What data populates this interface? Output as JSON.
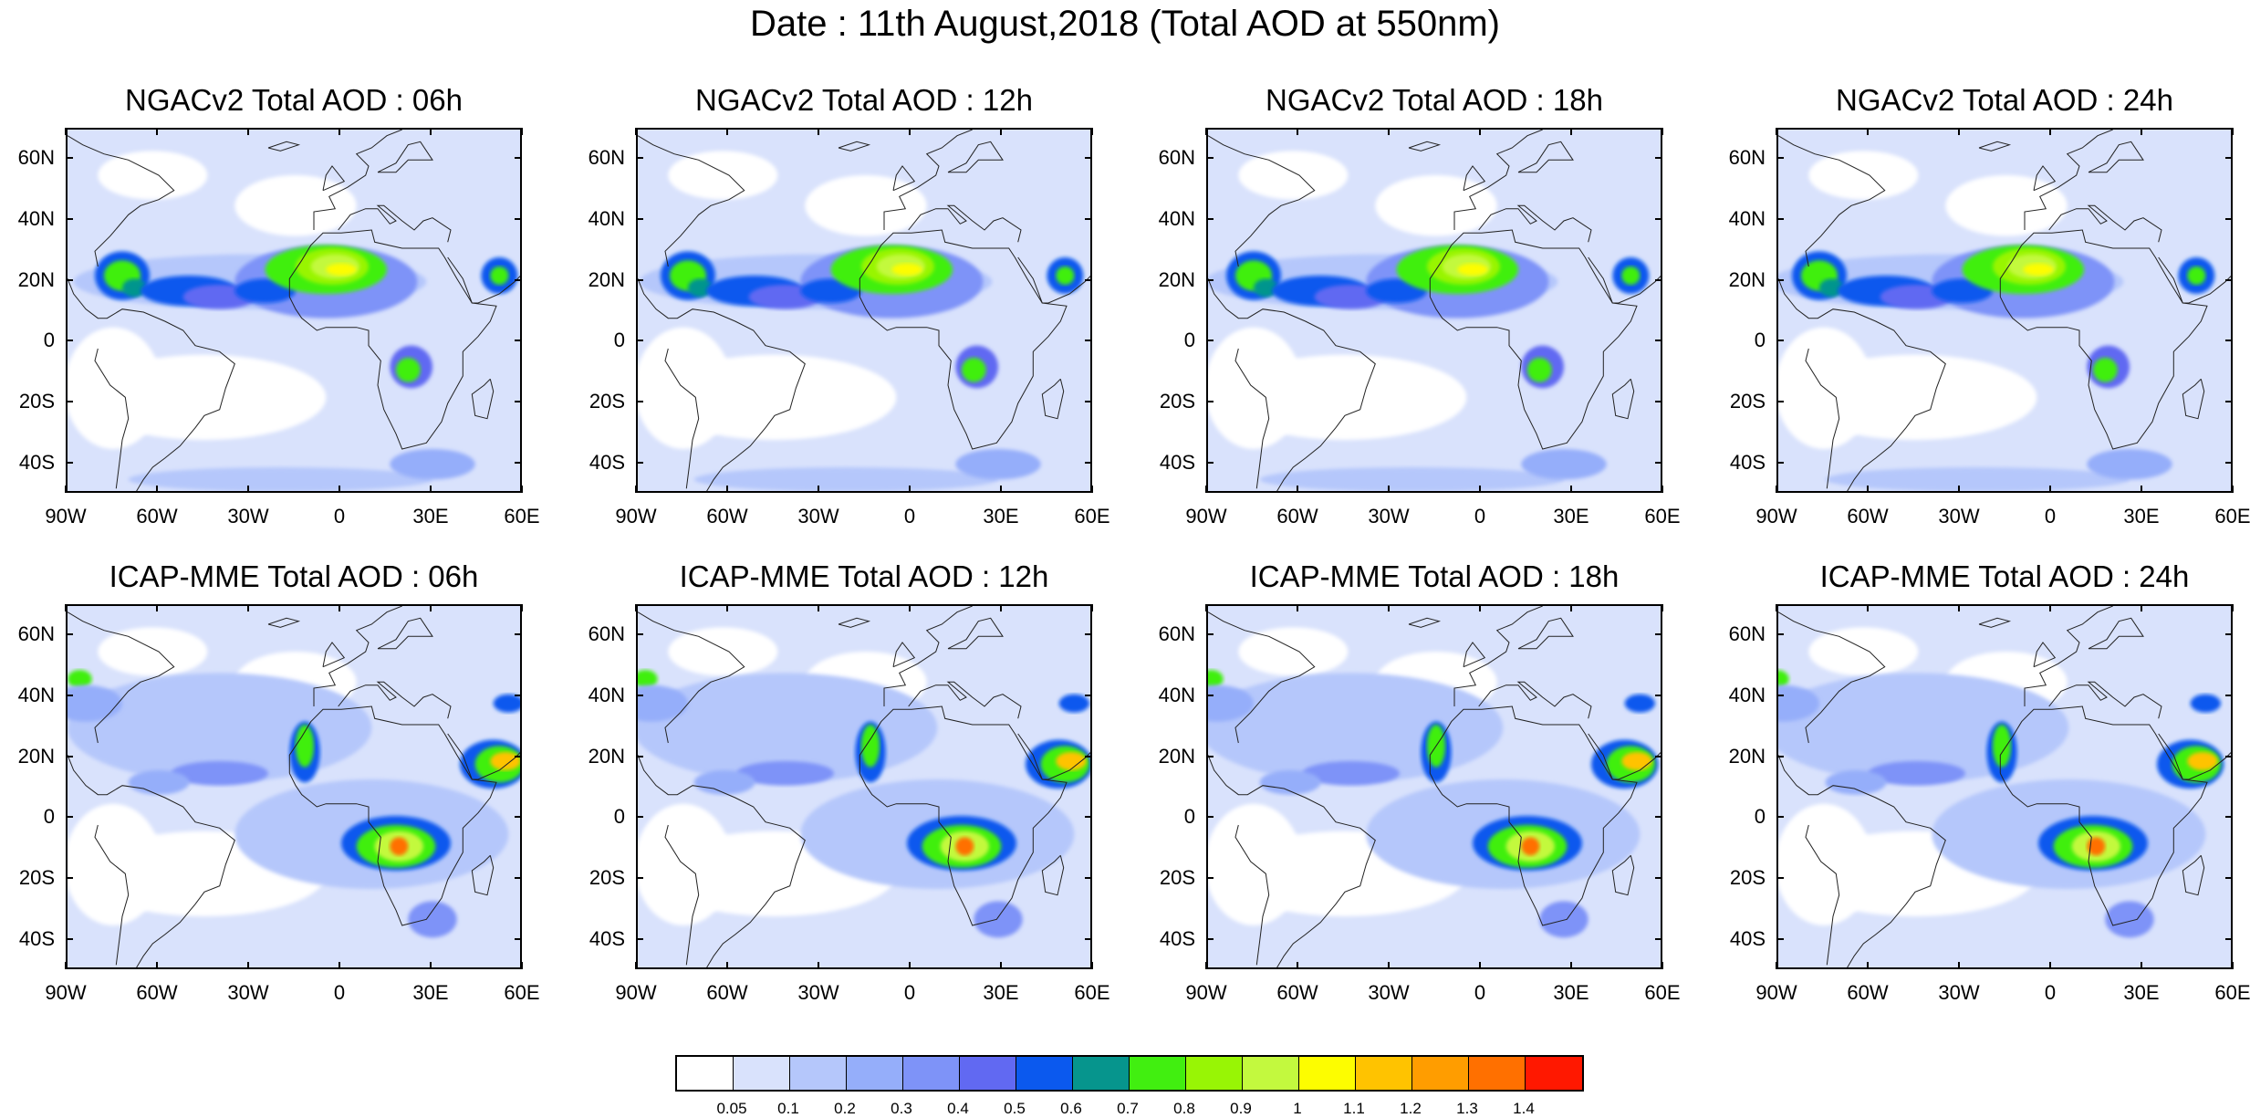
{
  "title": "Date : 11th August,2018 (Total AOD at 550nm)",
  "lat_labels": [
    "60N",
    "40N",
    "20N",
    "0",
    "20S",
    "40S"
  ],
  "lat_values": [
    60,
    40,
    20,
    0,
    -20,
    -40
  ],
  "lon_labels": [
    "90W",
    "60W",
    "30W",
    "0",
    "30E",
    "60E"
  ],
  "lon_values": [
    -90,
    -60,
    -30,
    0,
    30,
    60
  ],
  "extent": {
    "lon_min": -90,
    "lon_max": 60,
    "lat_min": -50,
    "lat_max": 70
  },
  "panels": [
    {
      "title": "NGACv2 Total AOD : 06h",
      "model": "NGACv2",
      "hour": 6
    },
    {
      "title": "NGACv2 Total AOD : 12h",
      "model": "NGACv2",
      "hour": 12
    },
    {
      "title": "NGACv2 Total AOD : 18h",
      "model": "NGACv2",
      "hour": 18
    },
    {
      "title": "NGACv2 Total AOD : 24h",
      "model": "NGACv2",
      "hour": 24
    },
    {
      "title": "ICAP-MME Total AOD : 06h",
      "model": "ICAP-MME",
      "hour": 6
    },
    {
      "title": "ICAP-MME Total AOD : 12h",
      "model": "ICAP-MME",
      "hour": 12
    },
    {
      "title": "ICAP-MME Total AOD : 18h",
      "model": "ICAP-MME",
      "hour": 18
    },
    {
      "title": "ICAP-MME Total AOD : 24h",
      "model": "ICAP-MME",
      "hour": 24
    }
  ],
  "colorbar": {
    "labels": [
      "0.05",
      "0.1",
      "0.2",
      "0.3",
      "0.4",
      "0.5",
      "0.6",
      "0.7",
      "0.8",
      "0.9",
      "1",
      "1.1",
      "1.2",
      "1.3",
      "1.4"
    ],
    "colors": [
      "#ffffff",
      "#d9e2fc",
      "#b5c7fb",
      "#95aefa",
      "#7e93f8",
      "#6169f2",
      "#0b59ee",
      "#06958d",
      "#41ef10",
      "#98f505",
      "#c3f93e",
      "#fdfd00",
      "#ffc300",
      "#ff9d00",
      "#ff7000",
      "#ff1800"
    ]
  }
}
